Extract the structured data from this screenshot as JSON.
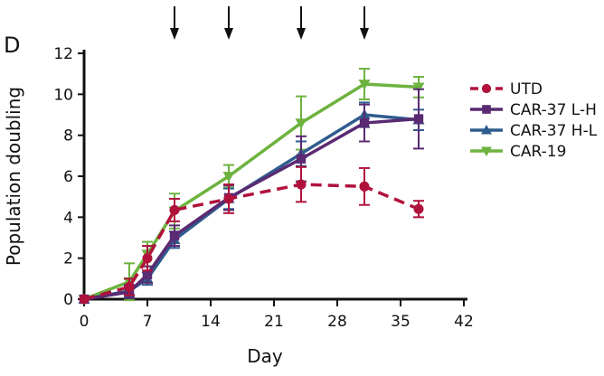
{
  "panel_label": "D",
  "chart_data": {
    "type": "line",
    "title": "",
    "xlabel": "Day",
    "ylabel": "Population doubling",
    "xlim": [
      0,
      42
    ],
    "ylim": [
      0,
      12
    ],
    "xticks": [
      0,
      7,
      14,
      21,
      28,
      35,
      42
    ],
    "xtick_labels": [
      "0",
      "7",
      "14",
      "21",
      "28",
      "35",
      "42"
    ],
    "yticks": [
      0,
      2,
      4,
      6,
      8,
      10,
      12
    ],
    "ytick_labels": [
      "0",
      "2",
      "4",
      "6",
      "8",
      "10",
      "12"
    ],
    "grid": false,
    "legend_position": "right",
    "annotations": {
      "arrows_at_days": [
        10,
        16,
        24,
        31
      ],
      "description": "downward arrows above plot"
    },
    "series": [
      {
        "name": "UTD",
        "color": "#B0123C",
        "marker": "circle",
        "line_style": "dashed",
        "x": [
          0,
          5,
          7,
          10,
          16,
          24,
          31,
          37
        ],
        "y": [
          0,
          0.6,
          2.0,
          4.35,
          4.9,
          5.6,
          5.5,
          4.4
        ],
        "err": [
          0,
          0.4,
          0.6,
          0.55,
          0.7,
          0.85,
          0.9,
          0.4
        ]
      },
      {
        "name": "CAR-37 L-H",
        "color": "#5A2A72",
        "marker": "square",
        "line_style": "solid",
        "x": [
          0,
          5,
          7,
          10,
          16,
          24,
          31,
          37
        ],
        "y": [
          0,
          0.35,
          1.2,
          3.1,
          4.95,
          6.85,
          8.6,
          8.8
        ],
        "err": [
          0,
          0.3,
          0.4,
          0.5,
          0.6,
          1.1,
          0.9,
          1.45
        ]
      },
      {
        "name": "CAR-37 H-L",
        "color": "#2F5C8E",
        "marker": "triangle-up",
        "line_style": "solid",
        "x": [
          0,
          5,
          7,
          10,
          16,
          24,
          31,
          37
        ],
        "y": [
          0,
          0.4,
          1.0,
          2.9,
          4.9,
          7.1,
          9.0,
          8.75
        ],
        "err": [
          0,
          0.3,
          0.3,
          0.4,
          0.5,
          0.6,
          0.6,
          0.5
        ]
      },
      {
        "name": "CAR-19",
        "color": "#6DB33F",
        "marker": "triangle-down",
        "line_style": "solid",
        "x": [
          0,
          5,
          7,
          10,
          16,
          24,
          31,
          37
        ],
        "y": [
          0,
          0.85,
          2.2,
          4.3,
          6.0,
          8.6,
          10.5,
          10.35
        ],
        "err": [
          0,
          0.9,
          0.6,
          0.85,
          0.55,
          1.3,
          0.75,
          0.5
        ]
      }
    ]
  }
}
